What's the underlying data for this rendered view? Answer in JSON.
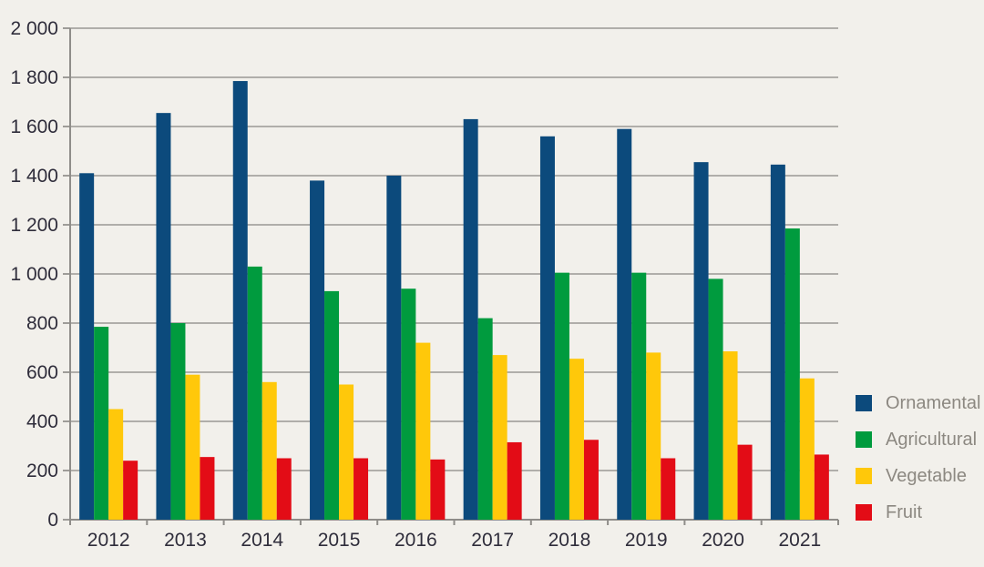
{
  "chart_data": {
    "type": "bar",
    "title": "",
    "xlabel": "",
    "ylabel": "",
    "categories": [
      "2012",
      "2013",
      "2014",
      "2015",
      "2016",
      "2017",
      "2018",
      "2019",
      "2020",
      "2021"
    ],
    "series": [
      {
        "name": "Ornamental",
        "color": "#0C4A7C",
        "values": [
          1410,
          1655,
          1785,
          1380,
          1400,
          1630,
          1560,
          1590,
          1455,
          1445
        ]
      },
      {
        "name": "Agricultural",
        "color": "#009B3E",
        "values": [
          785,
          800,
          1030,
          930,
          940,
          820,
          1005,
          1005,
          980,
          1185
        ]
      },
      {
        "name": "Vegetable",
        "color": "#FFC80A",
        "values": [
          450,
          590,
          560,
          550,
          720,
          670,
          655,
          680,
          685,
          575
        ]
      },
      {
        "name": "Fruit",
        "color": "#E30C16",
        "values": [
          240,
          255,
          250,
          250,
          245,
          315,
          325,
          250,
          305,
          265
        ]
      }
    ],
    "ylim": [
      0,
      2000
    ],
    "ytick_step": 200,
    "ytick_labels": [
      "0",
      "200",
      "400",
      "600",
      "800",
      "1 000",
      "1 200",
      "1 400",
      "1 600",
      "1 800",
      "2 000"
    ],
    "grid": true,
    "legend_position": "right",
    "colors": {
      "background": "#F2F0EB",
      "gridline": "#A7A4A0",
      "axis": "#8F8D89",
      "axis_text": "#2F2D3B",
      "legend_text": "#8C8881"
    }
  }
}
